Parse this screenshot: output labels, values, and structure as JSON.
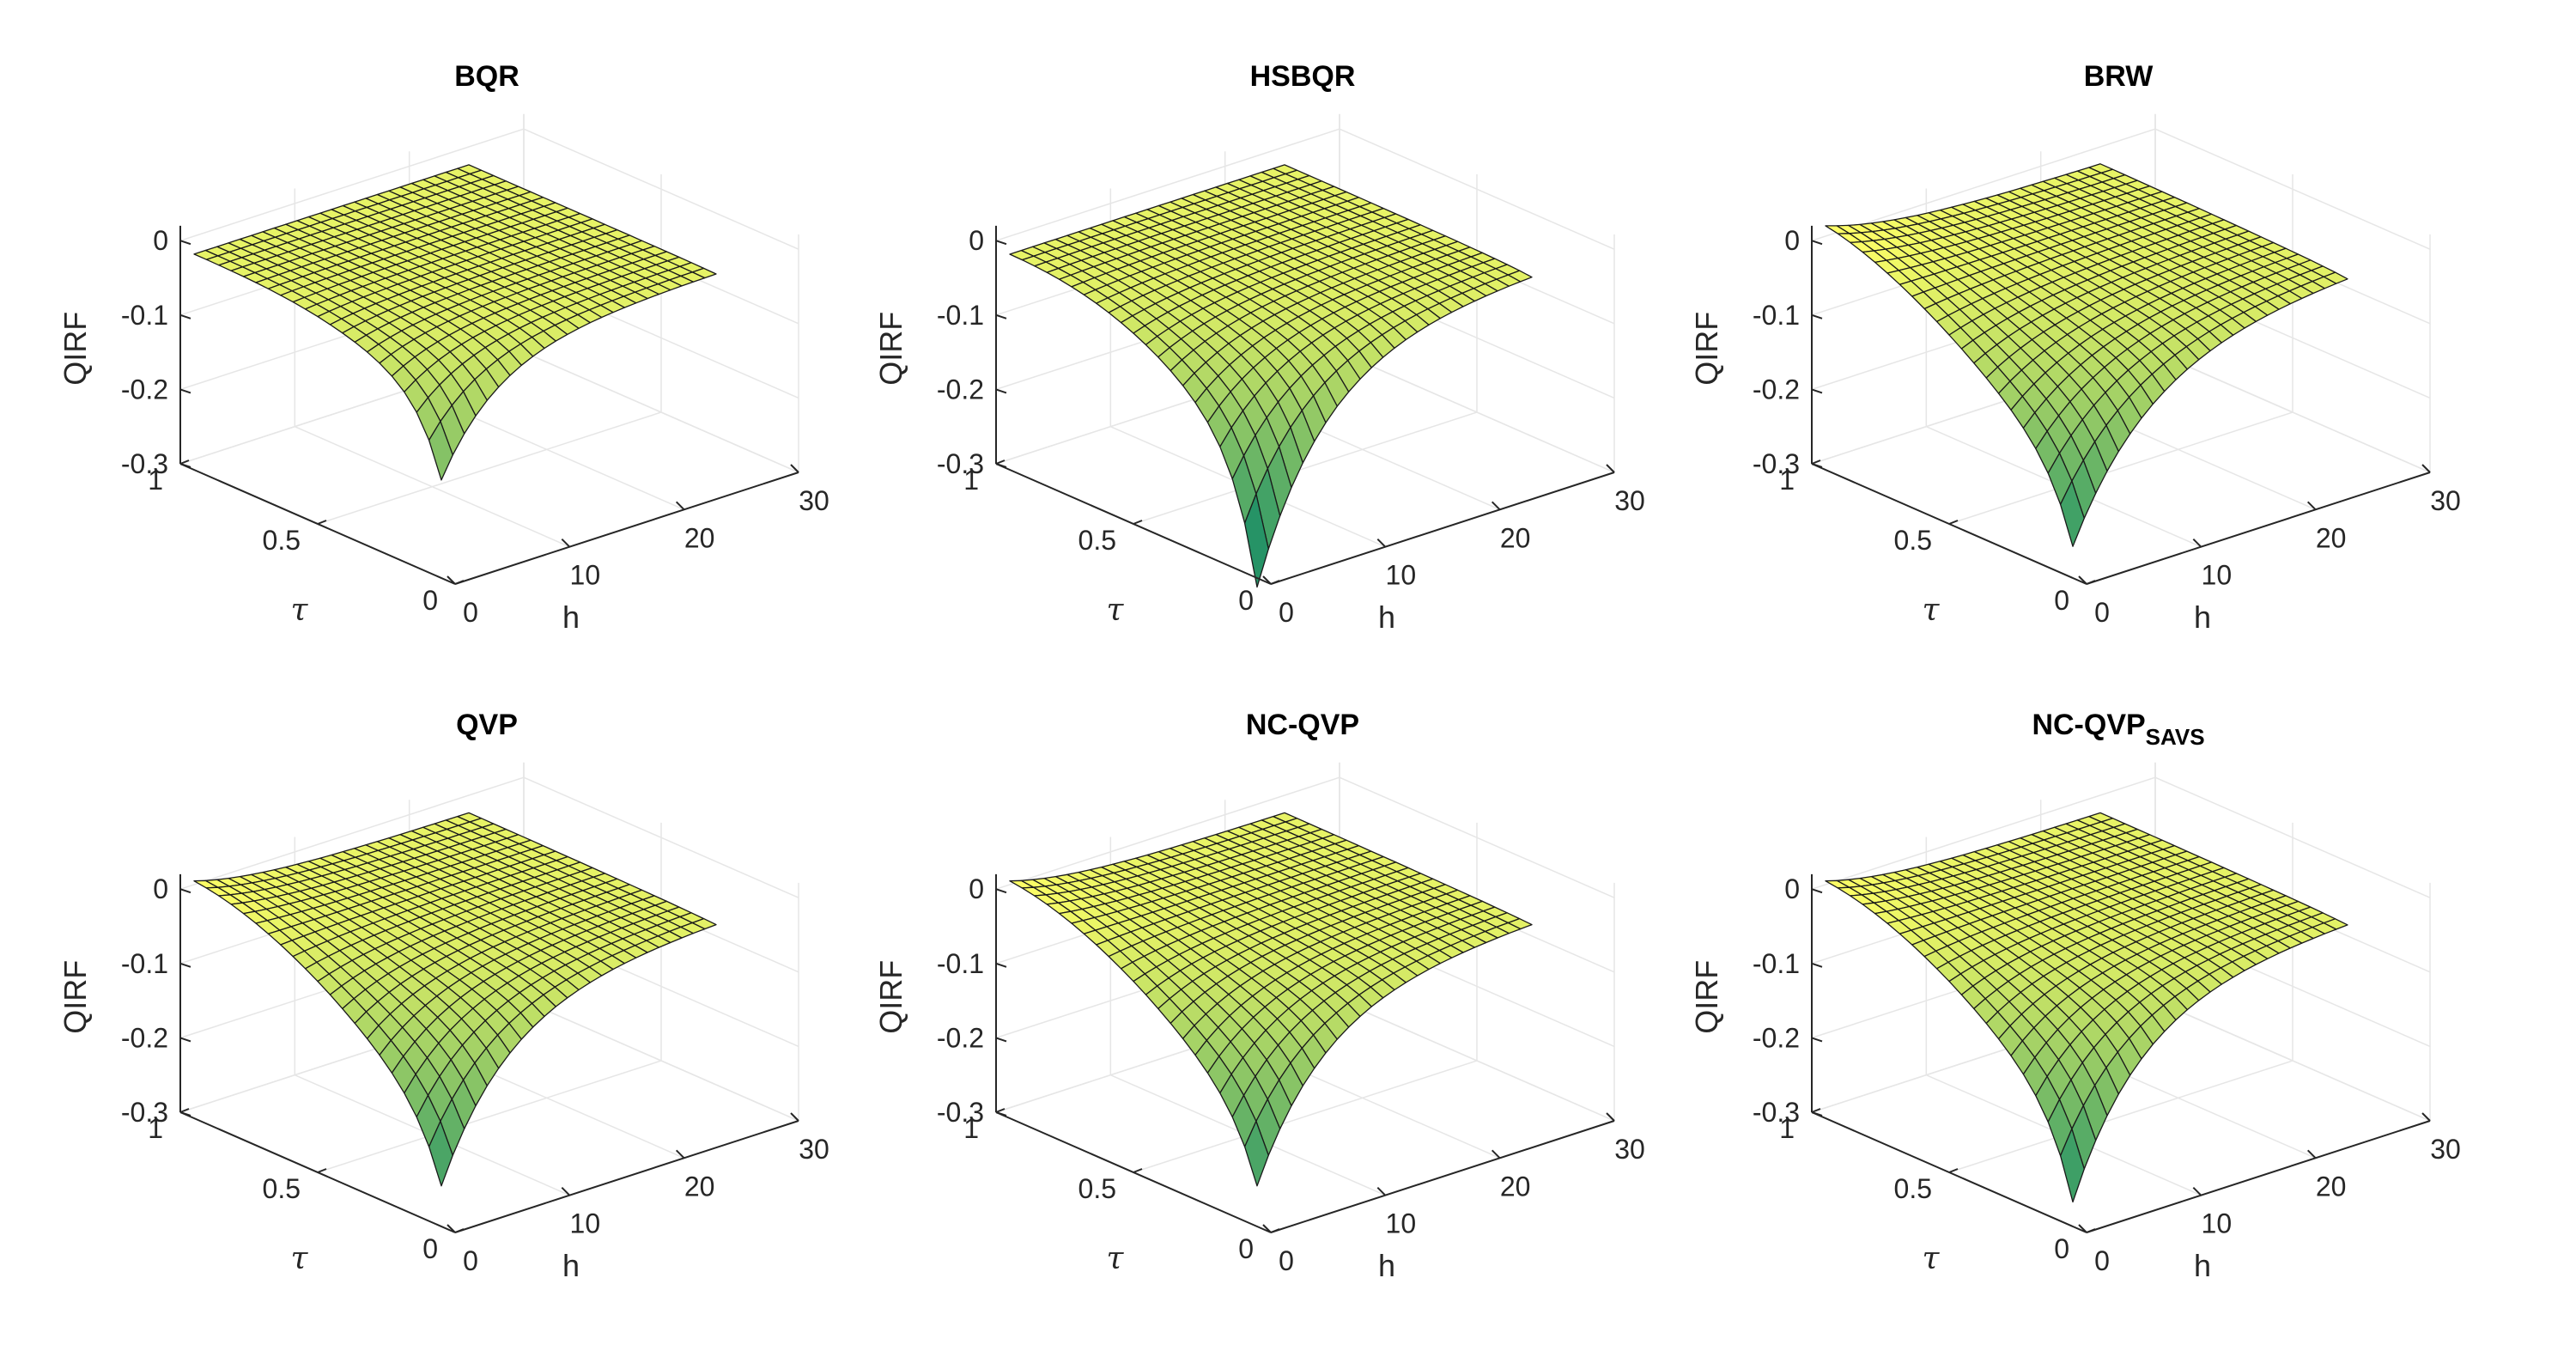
{
  "chart_data": [
    {
      "type": "surface",
      "title": "BQR",
      "title_sub": "",
      "xlabel": "h",
      "ylabel": "τ",
      "zlabel": "QIRF",
      "xlim": [
        0,
        30
      ],
      "ylim": [
        0,
        1
      ],
      "zlim": [
        -0.3,
        0.02
      ],
      "x_ticks": [
        "0",
        "10",
        "20",
        "30"
      ],
      "y_ticks": [
        "0",
        "0.5",
        "1"
      ],
      "z_ticks": [
        "0",
        "-0.1",
        "-0.2",
        "-0.3"
      ],
      "h_range": [
        0,
        24
      ],
      "tau_range": [
        0.05,
        0.95
      ],
      "shape": {
        "peak": -0.25,
        "decay": 5,
        "base": -0.1,
        "tail_power": 3,
        "start": -0.01
      }
    },
    {
      "type": "surface",
      "title": "HSBQR",
      "title_sub": "",
      "xlabel": "h",
      "ylabel": "τ",
      "zlabel": "QIRF",
      "xlim": [
        0,
        30
      ],
      "ylim": [
        0,
        1
      ],
      "zlim": [
        -0.3,
        0.02
      ],
      "x_ticks": [
        "0",
        "10",
        "20",
        "30"
      ],
      "y_ticks": [
        "0",
        "0.5",
        "1"
      ],
      "z_ticks": [
        "0",
        "-0.1",
        "-0.2",
        "-0.3"
      ],
      "h_range": [
        0,
        24
      ],
      "tau_range": [
        0.05,
        0.95
      ],
      "shape": {
        "peak": -0.45,
        "decay": 6,
        "base": -0.2,
        "tail_power": 2.5,
        "start": -0.01
      }
    },
    {
      "type": "surface",
      "title": "BRW",
      "title_sub": "",
      "xlabel": "h",
      "ylabel": "τ",
      "zlabel": "QIRF",
      "xlim": [
        0,
        30
      ],
      "ylim": [
        0,
        1
      ],
      "zlim": [
        -0.3,
        0.02
      ],
      "x_ticks": [
        "0",
        "10",
        "20",
        "30"
      ],
      "y_ticks": [
        "0",
        "0.5",
        "1"
      ],
      "z_ticks": [
        "0",
        "-0.1",
        "-0.2",
        "-0.3"
      ],
      "h_range": [
        0,
        24
      ],
      "tau_range": [
        0.05,
        0.95
      ],
      "shape": {
        "peak": -0.34,
        "decay": 7,
        "base": -0.2,
        "tail_power": 1.6,
        "start": 0.03
      }
    },
    {
      "type": "surface",
      "title": "QVP",
      "title_sub": "",
      "xlabel": "h",
      "ylabel": "τ",
      "zlabel": "QIRF",
      "xlim": [
        0,
        30
      ],
      "ylim": [
        0,
        1
      ],
      "zlim": [
        -0.3,
        0.02
      ],
      "x_ticks": [
        "0",
        "10",
        "20",
        "30"
      ],
      "y_ticks": [
        "0",
        "0.5",
        "1"
      ],
      "z_ticks": [
        "0",
        "-0.1",
        "-0.2",
        "-0.3"
      ],
      "h_range": [
        0,
        24
      ],
      "tau_range": [
        0.05,
        0.95
      ],
      "shape": {
        "peak": -0.32,
        "decay": 6,
        "base": -0.2,
        "tail_power": 1.8,
        "start": 0.02
      }
    },
    {
      "type": "surface",
      "title": "NC-QVP",
      "title_sub": "",
      "xlabel": "h",
      "ylabel": "τ",
      "zlabel": "QIRF",
      "xlim": [
        0,
        30
      ],
      "ylim": [
        0,
        1
      ],
      "zlim": [
        -0.3,
        0.02
      ],
      "x_ticks": [
        "0",
        "10",
        "20",
        "30"
      ],
      "y_ticks": [
        "0",
        "0.5",
        "1"
      ],
      "z_ticks": [
        "0",
        "-0.1",
        "-0.2",
        "-0.3"
      ],
      "h_range": [
        0,
        24
      ],
      "tau_range": [
        0.05,
        0.95
      ],
      "shape": {
        "peak": -0.32,
        "decay": 6,
        "base": -0.2,
        "tail_power": 1.8,
        "start": 0.02
      }
    },
    {
      "type": "surface",
      "title": "NC-QVP",
      "title_sub": "SAVS",
      "xlabel": "h",
      "ylabel": "τ",
      "zlabel": "QIRF",
      "xlim": [
        0,
        30
      ],
      "ylim": [
        0,
        1
      ],
      "zlim": [
        -0.3,
        0.02
      ],
      "x_ticks": [
        "0",
        "10",
        "20",
        "30"
      ],
      "y_ticks": [
        "0",
        "0.5",
        "1"
      ],
      "z_ticks": [
        "0",
        "-0.1",
        "-0.2",
        "-0.3"
      ],
      "h_range": [
        0,
        24
      ],
      "tau_range": [
        0.05,
        0.95
      ],
      "shape": {
        "peak": -0.36,
        "decay": 6,
        "base": -0.2,
        "tail_power": 1.8,
        "start": 0.02
      }
    }
  ],
  "colormap": {
    "name": "summer",
    "low": "#008066",
    "high": "#ffff66"
  },
  "grid": "on"
}
